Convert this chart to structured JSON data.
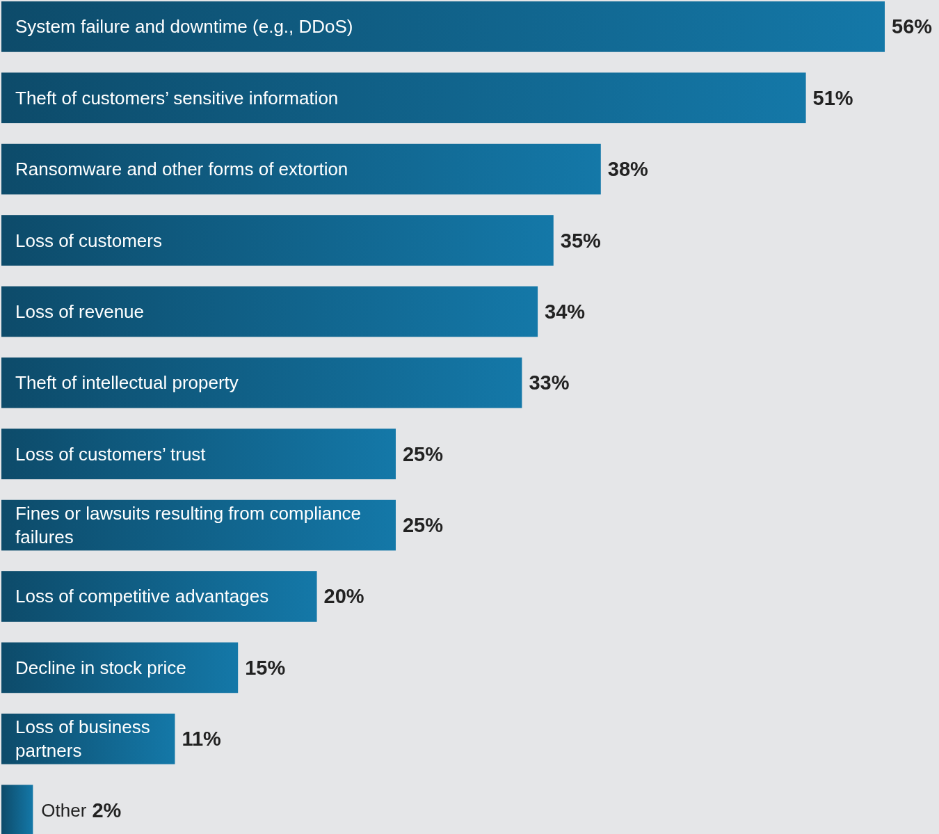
{
  "chart_data": {
    "type": "bar",
    "orientation": "horizontal",
    "relative": false,
    "categories": [
      "System failure and downtime (e.g., DDoS)",
      "Theft of customers’ sensitive information",
      "Ransomware and other forms of extortion",
      "Loss of customers",
      "Loss of revenue",
      "Theft of intellectual property",
      "Loss of customers’ trust",
      "Fines or lawsuits resulting from compliance failures",
      "Loss of competitive advantages",
      "Decline in stock price",
      "Loss of business partners",
      "Other"
    ],
    "series": [
      {
        "color": "#1478a8",
        "values": [
          56,
          51,
          38,
          35,
          34,
          33,
          25,
          25,
          20,
          15,
          11,
          2
        ],
        "value_labels": [
          "56%",
          "51%",
          "38%",
          "35%",
          "34%",
          "33%",
          "25%",
          "25%",
          "20%",
          "15%",
          "11%",
          "2%"
        ]
      }
    ]
  }
}
